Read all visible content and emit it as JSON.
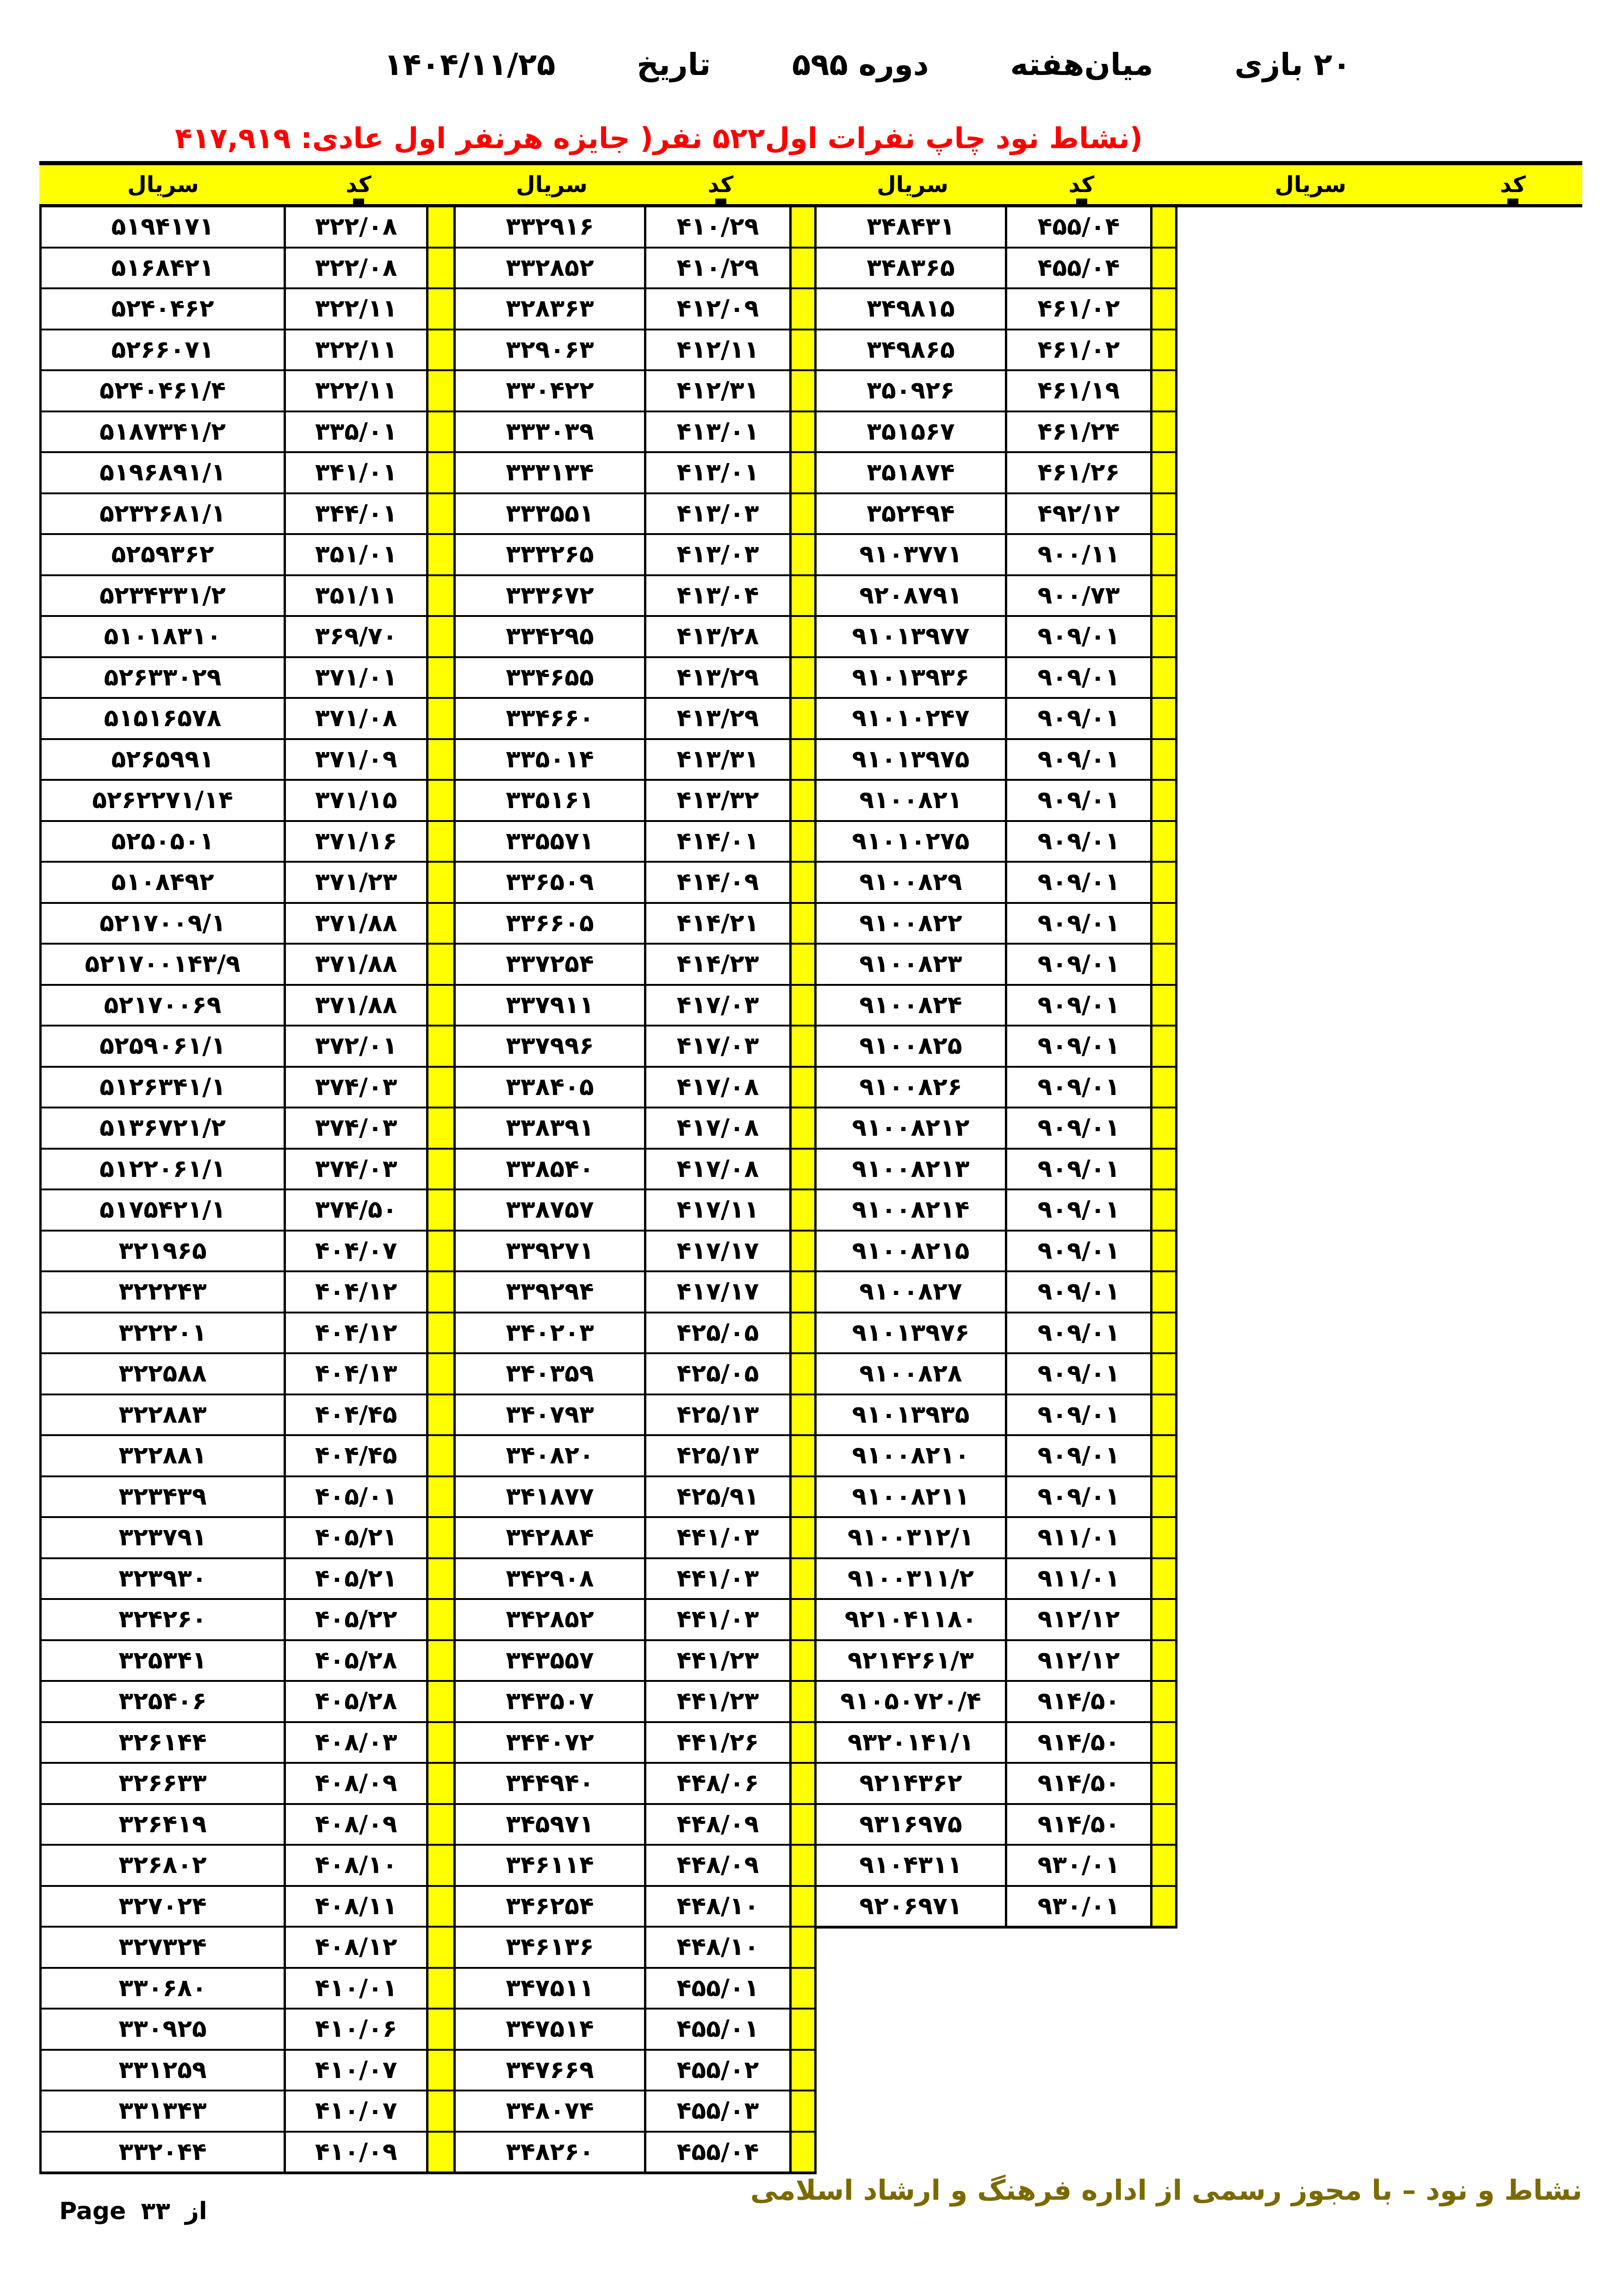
{
  "header": {
    "title_parts": [
      "۲۰  بازی",
      "میان‌هفته",
      "دوره  ۵۹۵",
      "تاریخ",
      "۱۴۰۴/۱۱/۲۵"
    ],
    "subtitle_parts": [
      "(نشاط نود  چاپ نفرات اول",
      "۵۲۲ نفر",
      "( جایزه هرنفر اول عادی: ۴۱۷,۹۱۹"
    ],
    "subtitle_color": "#ff0000"
  },
  "table": {
    "accent_yellow": "#ffff00",
    "header_labels": {
      "serial": "سریال",
      "code": "کد"
    },
    "groups": [
      {
        "rows": [
          [
            "۵۱۹۴۱۷۱",
            "۳۲۲/۰۸"
          ],
          [
            "۵۱۶۸۴۲۱",
            "۳۲۲/۰۸"
          ],
          [
            "۵۲۴۰۴۶۲",
            "۳۲۲/۱۱"
          ],
          [
            "۵۲۶۶۰۷۱",
            "۳۲۲/۱۱"
          ],
          [
            "۵۲۴۰۴۶۱/۴",
            "۳۲۲/۱۱"
          ],
          [
            "۵۱۸۷۳۴۱/۲",
            "۳۳۵/۰۱"
          ],
          [
            "۵۱۹۶۸۹۱/۱",
            "۳۴۱/۰۱"
          ],
          [
            "۵۲۳۲۶۸۱/۱",
            "۳۴۴/۰۱"
          ],
          [
            "۵۲۵۹۳۶۲",
            "۳۵۱/۰۱"
          ],
          [
            "۵۲۳۴۳۳۱/۲",
            "۳۵۱/۱۱"
          ],
          [
            "۵۱۰۱۸۳۱۰",
            "۳۶۹/۷۰"
          ],
          [
            "۵۲۶۳۳۰۲۹",
            "۳۷۱/۰۱"
          ],
          [
            "۵۱۵۱۶۵۷۸",
            "۳۷۱/۰۸"
          ],
          [
            "۵۲۶۵۹۹۱",
            "۳۷۱/۰۹"
          ],
          [
            "۵۲۶۲۲۷۱/۱۴",
            "۳۷۱/۱۵"
          ],
          [
            "۵۲۵۰۵۰۱",
            "۳۷۱/۱۶"
          ],
          [
            "۵۱۰۸۴۹۲",
            "۳۷۱/۲۳"
          ],
          [
            "۵۲۱۷۰۰۹/۱",
            "۳۷۱/۸۸"
          ],
          [
            "۵۲۱۷۰۰۱۴۳/۹",
            "۳۷۱/۸۸"
          ],
          [
            "۵۲۱۷۰۰۶۹",
            "۳۷۱/۸۸"
          ],
          [
            "۵۲۵۹۰۶۱/۱",
            "۳۷۲/۰۱"
          ],
          [
            "۵۱۲۶۳۴۱/۱",
            "۳۷۴/۰۳"
          ],
          [
            "۵۱۳۶۷۲۱/۲",
            "۳۷۴/۰۳"
          ],
          [
            "۵۱۲۲۰۶۱/۱",
            "۳۷۴/۰۳"
          ],
          [
            "۵۱۷۵۴۲۱/۱",
            "۳۷۴/۵۰"
          ],
          [
            "۳۲۱۹۶۵",
            "۴۰۴/۰۷"
          ],
          [
            "۳۲۲۲۴۳",
            "۴۰۴/۱۲"
          ],
          [
            "۳۲۲۲۰۱",
            "۴۰۴/۱۲"
          ],
          [
            "۳۲۲۵۸۸",
            "۴۰۴/۱۳"
          ],
          [
            "۳۲۲۸۸۳",
            "۴۰۴/۴۵"
          ],
          [
            "۳۲۲۸۸۱",
            "۴۰۴/۴۵"
          ],
          [
            "۳۲۳۴۳۹",
            "۴۰۵/۰۱"
          ],
          [
            "۳۲۳۷۹۱",
            "۴۰۵/۲۱"
          ],
          [
            "۳۲۳۹۳۰",
            "۴۰۵/۲۱"
          ],
          [
            "۳۲۴۲۶۰",
            "۴۰۵/۲۲"
          ],
          [
            "۳۲۵۳۴۱",
            "۴۰۵/۲۸"
          ],
          [
            "۳۲۵۴۰۶",
            "۴۰۵/۲۸"
          ],
          [
            "۳۲۶۱۴۴",
            "۴۰۸/۰۳"
          ],
          [
            "۳۲۶۶۳۳",
            "۴۰۸/۰۹"
          ],
          [
            "۳۲۶۴۱۹",
            "۴۰۸/۰۹"
          ],
          [
            "۳۲۶۸۰۲",
            "۴۰۸/۱۰"
          ],
          [
            "۳۲۷۰۲۴",
            "۴۰۸/۱۱"
          ],
          [
            "۳۲۷۳۲۴",
            "۴۰۸/۱۲"
          ],
          [
            "۳۳۰۶۸۰",
            "۴۱۰/۰۱"
          ],
          [
            "۳۳۰۹۲۵",
            "۴۱۰/۰۶"
          ],
          [
            "۳۳۱۲۵۹",
            "۴۱۰/۰۷"
          ],
          [
            "۳۳۱۳۴۳",
            "۴۱۰/۰۷"
          ],
          [
            "۳۳۲۰۴۴",
            "۴۱۰/۰۹"
          ]
        ]
      },
      {
        "rows": [
          [
            "۳۳۲۹۱۶",
            "۴۱۰/۲۹"
          ],
          [
            "۳۳۲۸۵۲",
            "۴۱۰/۲۹"
          ],
          [
            "۳۲۸۳۶۳",
            "۴۱۲/۰۹"
          ],
          [
            "۳۲۹۰۶۳",
            "۴۱۲/۱۱"
          ],
          [
            "۳۳۰۴۲۲",
            "۴۱۲/۳۱"
          ],
          [
            "۳۳۳۰۳۹",
            "۴۱۳/۰۱"
          ],
          [
            "۳۳۳۱۳۴",
            "۴۱۳/۰۱"
          ],
          [
            "۳۳۳۵۵۱",
            "۴۱۳/۰۳"
          ],
          [
            "۳۳۳۲۶۵",
            "۴۱۳/۰۳"
          ],
          [
            "۳۳۳۶۷۲",
            "۴۱۳/۰۴"
          ],
          [
            "۳۳۴۲۹۵",
            "۴۱۳/۲۸"
          ],
          [
            "۳۳۴۶۵۵",
            "۴۱۳/۲۹"
          ],
          [
            "۳۳۴۶۶۰",
            "۴۱۳/۲۹"
          ],
          [
            "۳۳۵۰۱۴",
            "۴۱۳/۳۱"
          ],
          [
            "۳۳۵۱۶۱",
            "۴۱۳/۳۲"
          ],
          [
            "۳۳۵۵۷۱",
            "۴۱۴/۰۱"
          ],
          [
            "۳۳۶۵۰۹",
            "۴۱۴/۰۹"
          ],
          [
            "۳۳۶۶۰۵",
            "۴۱۴/۲۱"
          ],
          [
            "۳۳۷۲۵۴",
            "۴۱۴/۲۳"
          ],
          [
            "۳۳۷۹۱۱",
            "۴۱۷/۰۳"
          ],
          [
            "۳۳۷۹۹۶",
            "۴۱۷/۰۳"
          ],
          [
            "۳۳۸۴۰۵",
            "۴۱۷/۰۸"
          ],
          [
            "۳۳۸۳۹۱",
            "۴۱۷/۰۸"
          ],
          [
            "۳۳۸۵۴۰",
            "۴۱۷/۰۸"
          ],
          [
            "۳۳۸۷۵۷",
            "۴۱۷/۱۱"
          ],
          [
            "۳۳۹۲۷۱",
            "۴۱۷/۱۷"
          ],
          [
            "۳۳۹۲۹۴",
            "۴۱۷/۱۷"
          ],
          [
            "۳۴۰۲۰۳",
            "۴۲۵/۰۵"
          ],
          [
            "۳۴۰۳۵۹",
            "۴۲۵/۰۵"
          ],
          [
            "۳۴۰۷۹۳",
            "۴۲۵/۱۳"
          ],
          [
            "۳۴۰۸۲۰",
            "۴۲۵/۱۳"
          ],
          [
            "۳۴۱۸۷۷",
            "۴۲۵/۹۱"
          ],
          [
            "۳۴۲۸۸۴",
            "۴۴۱/۰۳"
          ],
          [
            "۳۴۲۹۰۸",
            "۴۴۱/۰۳"
          ],
          [
            "۳۴۲۸۵۲",
            "۴۴۱/۰۳"
          ],
          [
            "۳۴۳۵۵۷",
            "۴۴۱/۲۳"
          ],
          [
            "۳۴۳۵۰۷",
            "۴۴۱/۲۳"
          ],
          [
            "۳۴۴۰۷۲",
            "۴۴۱/۲۶"
          ],
          [
            "۳۴۴۹۴۰",
            "۴۴۸/۰۶"
          ],
          [
            "۳۴۵۹۷۱",
            "۴۴۸/۰۹"
          ],
          [
            "۳۴۶۱۱۴",
            "۴۴۸/۰۹"
          ],
          [
            "۳۴۶۲۵۴",
            "۴۴۸/۱۰"
          ],
          [
            "۳۴۶۱۳۶",
            "۴۴۸/۱۰"
          ],
          [
            "۳۴۷۵۱۱",
            "۴۵۵/۰۱"
          ],
          [
            "۳۴۷۵۱۴",
            "۴۵۵/۰۱"
          ],
          [
            "۳۴۷۶۶۹",
            "۴۵۵/۰۲"
          ],
          [
            "۳۴۸۰۷۴",
            "۴۵۵/۰۳"
          ],
          [
            "۳۴۸۲۶۰",
            "۴۵۵/۰۴"
          ]
        ]
      },
      {
        "rows": [
          [
            "۳۴۸۴۳۱",
            "۴۵۵/۰۴"
          ],
          [
            "۳۴۸۳۶۵",
            "۴۵۵/۰۴"
          ],
          [
            "۳۴۹۸۱۵",
            "۴۶۱/۰۲"
          ],
          [
            "۳۴۹۸۶۵",
            "۴۶۱/۰۲"
          ],
          [
            "۳۵۰۹۲۶",
            "۴۶۱/۱۹"
          ],
          [
            "۳۵۱۵۶۷",
            "۴۶۱/۲۴"
          ],
          [
            "۳۵۱۸۷۴",
            "۴۶۱/۲۶"
          ],
          [
            "۳۵۲۴۹۴",
            "۴۹۲/۱۲"
          ],
          [
            "۹۱۰۳۷۷۱",
            "۹۰۰/۱۱"
          ],
          [
            "۹۲۰۸۷۹۱",
            "۹۰۰/۷۳"
          ],
          [
            "۹۱۰۱۳۹۷۷",
            "۹۰۹/۰۱"
          ],
          [
            "۹۱۰۱۳۹۳۶",
            "۹۰۹/۰۱"
          ],
          [
            "۹۱۰۱۰۲۴۷",
            "۹۰۹/۰۱"
          ],
          [
            "۹۱۰۱۳۹۷۵",
            "۹۰۹/۰۱"
          ],
          [
            "۹۱۰۰۸۲۱",
            "۹۰۹/۰۱"
          ],
          [
            "۹۱۰۱۰۲۷۵",
            "۹۰۹/۰۱"
          ],
          [
            "۹۱۰۰۸۲۹",
            "۹۰۹/۰۱"
          ],
          [
            "۹۱۰۰۸۲۲",
            "۹۰۹/۰۱"
          ],
          [
            "۹۱۰۰۸۲۳",
            "۹۰۹/۰۱"
          ],
          [
            "۹۱۰۰۸۲۴",
            "۹۰۹/۰۱"
          ],
          [
            "۹۱۰۰۸۲۵",
            "۹۰۹/۰۱"
          ],
          [
            "۹۱۰۰۸۲۶",
            "۹۰۹/۰۱"
          ],
          [
            "۹۱۰۰۸۲۱۲",
            "۹۰۹/۰۱"
          ],
          [
            "۹۱۰۰۸۲۱۳",
            "۹۰۹/۰۱"
          ],
          [
            "۹۱۰۰۸۲۱۴",
            "۹۰۹/۰۱"
          ],
          [
            "۹۱۰۰۸۲۱۵",
            "۹۰۹/۰۱"
          ],
          [
            "۹۱۰۰۸۲۷",
            "۹۰۹/۰۱"
          ],
          [
            "۹۱۰۱۳۹۷۶",
            "۹۰۹/۰۱"
          ],
          [
            "۹۱۰۰۸۲۸",
            "۹۰۹/۰۱"
          ],
          [
            "۹۱۰۱۳۹۳۵",
            "۹۰۹/۰۱"
          ],
          [
            "۹۱۰۰۸۲۱۰",
            "۹۰۹/۰۱"
          ],
          [
            "۹۱۰۰۸۲۱۱",
            "۹۰۹/۰۱"
          ],
          [
            "۹۱۰۰۳۱۲/۱",
            "۹۱۱/۰۱"
          ],
          [
            "۹۱۰۰۳۱۱/۲",
            "۹۱۱/۰۱"
          ],
          [
            "۹۲۱۰۴۱۱۸۰",
            "۹۱۲/۱۲"
          ],
          [
            "۹۲۱۴۲۶۱/۳",
            "۹۱۲/۱۲"
          ],
          [
            "۹۱۰۵۰۷۲۰/۴",
            "۹۱۴/۵۰"
          ],
          [
            "۹۳۲۰۱۴۱/۱",
            "۹۱۴/۵۰"
          ],
          [
            "۹۲۱۴۳۶۲",
            "۹۱۴/۵۰"
          ],
          [
            "۹۳۱۶۹۷۵",
            "۹۱۴/۵۰"
          ],
          [
            "۹۱۰۴۳۱۱",
            "۹۳۰/۰۱"
          ],
          [
            "۹۲۰۶۹۷۱",
            "۹۳۰/۰۱"
          ]
        ]
      },
      {
        "rows": []
      }
    ]
  },
  "footer": {
    "left": "از ۳۳ Page",
    "right": "نشاط و نود – با مجوز رسمی از اداره فرهنگ و ارشاد اسلامی",
    "right_color": "#7b6a00"
  }
}
